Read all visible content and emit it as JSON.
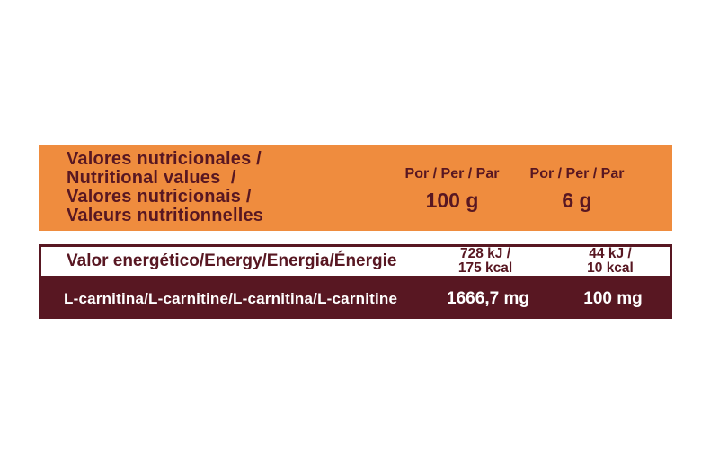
{
  "colors": {
    "orange": "#EF8C3E",
    "maroon": "#581722",
    "white": "#FFFFFF"
  },
  "table": {
    "header": {
      "title_lines": [
        "Valores nutricionales /",
        "Nutritional values  /",
        "Valores nutricionais /",
        "Valeurs nutritionnelles"
      ],
      "per_100": {
        "label": "Por / Per / Par",
        "amount": "100 g"
      },
      "per_serving": {
        "label": "Por / Per / Par",
        "amount": "6 g"
      }
    },
    "energy_row": {
      "label": "Valor energético/Energy/Energia/Énergie",
      "per_100_lines": [
        "728 kJ /",
        "175 kcal"
      ],
      "per_serving_lines": [
        "44 kJ /",
        "10 kcal"
      ]
    },
    "carnitine_row": {
      "label": "L-carnitina/L-carnitine/L-carnitina/L-carnitine",
      "per_100": "1666,7 mg",
      "per_serving": "100 mg"
    }
  }
}
